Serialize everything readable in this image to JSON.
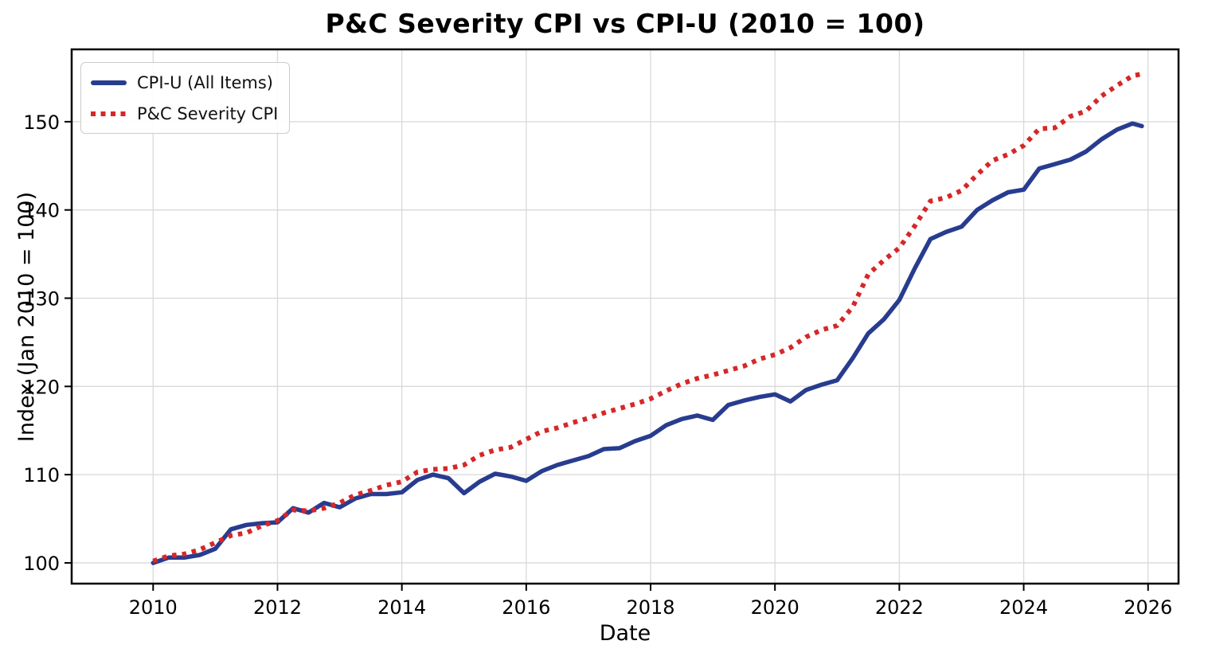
{
  "chart_data": {
    "type": "line",
    "title": "P&C Severity CPI vs CPI-U (2010 = 100)",
    "xlabel": "Date",
    "ylabel": "Index (Jan 2010 = 100)",
    "grid": true,
    "grid_color": "#d9d9d9",
    "background_color": "#ffffff",
    "legend_position": "upper left",
    "x_ticks": [
      2010,
      2012,
      2014,
      2016,
      2018,
      2020,
      2022,
      2024,
      2026
    ],
    "y_ticks": [
      100,
      110,
      120,
      130,
      140,
      150
    ],
    "x_range": [
      2008.69,
      2026.49
    ],
    "y_range": [
      97.65,
      158.2
    ],
    "x": [
      2010.0,
      2010.25,
      2010.5,
      2010.75,
      2011.0,
      2011.25,
      2011.5,
      2011.75,
      2012.0,
      2012.25,
      2012.5,
      2012.75,
      2013.0,
      2013.25,
      2013.5,
      2013.75,
      2014.0,
      2014.25,
      2014.5,
      2014.75,
      2015.0,
      2015.25,
      2015.5,
      2015.75,
      2016.0,
      2016.25,
      2016.5,
      2016.75,
      2017.0,
      2017.25,
      2017.5,
      2017.75,
      2018.0,
      2018.25,
      2018.5,
      2018.75,
      2019.0,
      2019.25,
      2019.5,
      2019.75,
      2020.0,
      2020.25,
      2020.5,
      2020.75,
      2021.0,
      2021.25,
      2021.5,
      2021.75,
      2022.0,
      2022.25,
      2022.5,
      2022.75,
      2023.0,
      2023.25,
      2023.5,
      2023.75,
      2024.0,
      2024.25,
      2024.5,
      2024.75,
      2025.0,
      2025.25,
      2025.5,
      2025.75,
      2025.9
    ],
    "series": [
      {
        "name": "CPI-U (All Items)",
        "color": "#283C8F",
        "style": "solid",
        "width": 5.5,
        "y": [
          100.0,
          100.6,
          100.6,
          100.9,
          101.6,
          103.8,
          104.3,
          104.5,
          104.6,
          106.2,
          105.7,
          106.8,
          106.3,
          107.3,
          107.8,
          107.8,
          108.0,
          109.4,
          110.0,
          109.6,
          107.9,
          109.2,
          110.1,
          109.8,
          109.3,
          110.4,
          111.1,
          111.6,
          112.1,
          112.9,
          113.0,
          113.8,
          114.4,
          115.6,
          116.3,
          116.7,
          116.2,
          117.9,
          118.4,
          118.8,
          119.1,
          118.3,
          119.6,
          120.2,
          120.7,
          123.2,
          126.0,
          127.6,
          129.8,
          133.4,
          136.7,
          137.5,
          138.1,
          140.0,
          141.1,
          142.0,
          142.3,
          144.7,
          145.2,
          145.7,
          146.6,
          148.0,
          149.1,
          149.8,
          149.5
        ]
      },
      {
        "name": "P&C Severity CPI",
        "color": "#D62728",
        "style": "dotted",
        "width": 6,
        "y": [
          100.2,
          100.8,
          101.0,
          101.5,
          102.3,
          103.1,
          103.4,
          104.2,
          104.8,
          106.0,
          105.9,
          106.2,
          106.8,
          107.7,
          108.2,
          108.8,
          109.2,
          110.3,
          110.6,
          110.7,
          111.1,
          112.2,
          112.8,
          113.1,
          114.0,
          114.9,
          115.3,
          115.9,
          116.4,
          117.0,
          117.5,
          118.0,
          118.6,
          119.5,
          120.3,
          120.9,
          121.3,
          121.8,
          122.3,
          123.1,
          123.6,
          124.4,
          125.6,
          126.4,
          126.9,
          129.0,
          132.7,
          134.3,
          135.7,
          138.2,
          141.0,
          141.4,
          142.2,
          144.0,
          145.6,
          146.3,
          147.3,
          149.2,
          149.3,
          150.6,
          151.2,
          152.9,
          154.1,
          155.2,
          155.4
        ]
      }
    ]
  }
}
